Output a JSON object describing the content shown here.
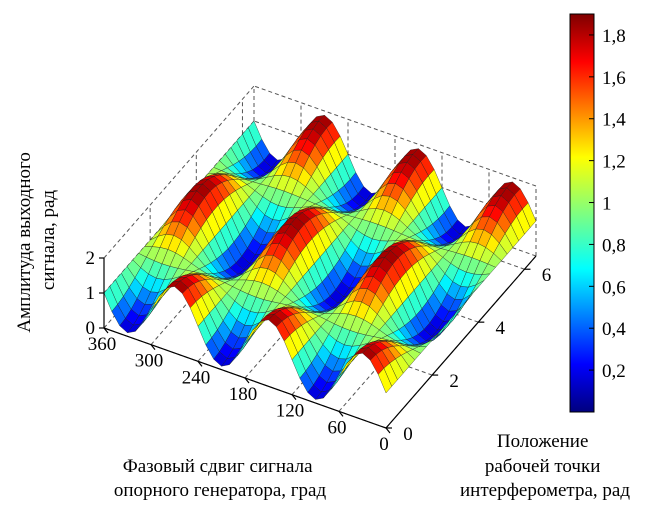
{
  "chart_data": {
    "type": "surface3d",
    "title": "",
    "zlabel_lines": [
      "Амплитуда выходного",
      "сигнала, рад"
    ],
    "xlabel_lines": [
      "Фазовый сдвиг сигнала",
      "опорного генератора, град"
    ],
    "ylabel_lines": [
      "Положение",
      "рабочей точки",
      "интерферометра, рад"
    ],
    "x_axis": {
      "range": [
        0,
        360
      ],
      "ticks": [
        "360",
        "300",
        "240",
        "180",
        "120",
        "60",
        "0"
      ]
    },
    "y_axis": {
      "range": [
        0,
        6.5
      ],
      "ticks": [
        "0",
        "2",
        "4",
        "6"
      ]
    },
    "z_axis": {
      "range": [
        0,
        2
      ],
      "ticks": [
        "0",
        "1",
        "2"
      ]
    },
    "colorbar": {
      "range": [
        0,
        1.9
      ],
      "ticks": [
        "0,2",
        "0,4",
        "0,6",
        "0,8",
        "1",
        "1,2",
        "1,4",
        "1,6",
        "1,8"
      ],
      "colormap": "jet"
    },
    "surface": {
      "model": "z = 1 + 0.9 * sin(3*x_deg*pi/180) * cos(y)",
      "x_samples": 37,
      "y_samples": 27
    },
    "grid": true,
    "colors": {
      "grid_line": "#555555",
      "mesh_line": "#1a1a1a",
      "jet": [
        "#00007f",
        "#0000ff",
        "#00ffff",
        "#7fff7f",
        "#ffff00",
        "#ff0000",
        "#7f0000"
      ]
    }
  }
}
